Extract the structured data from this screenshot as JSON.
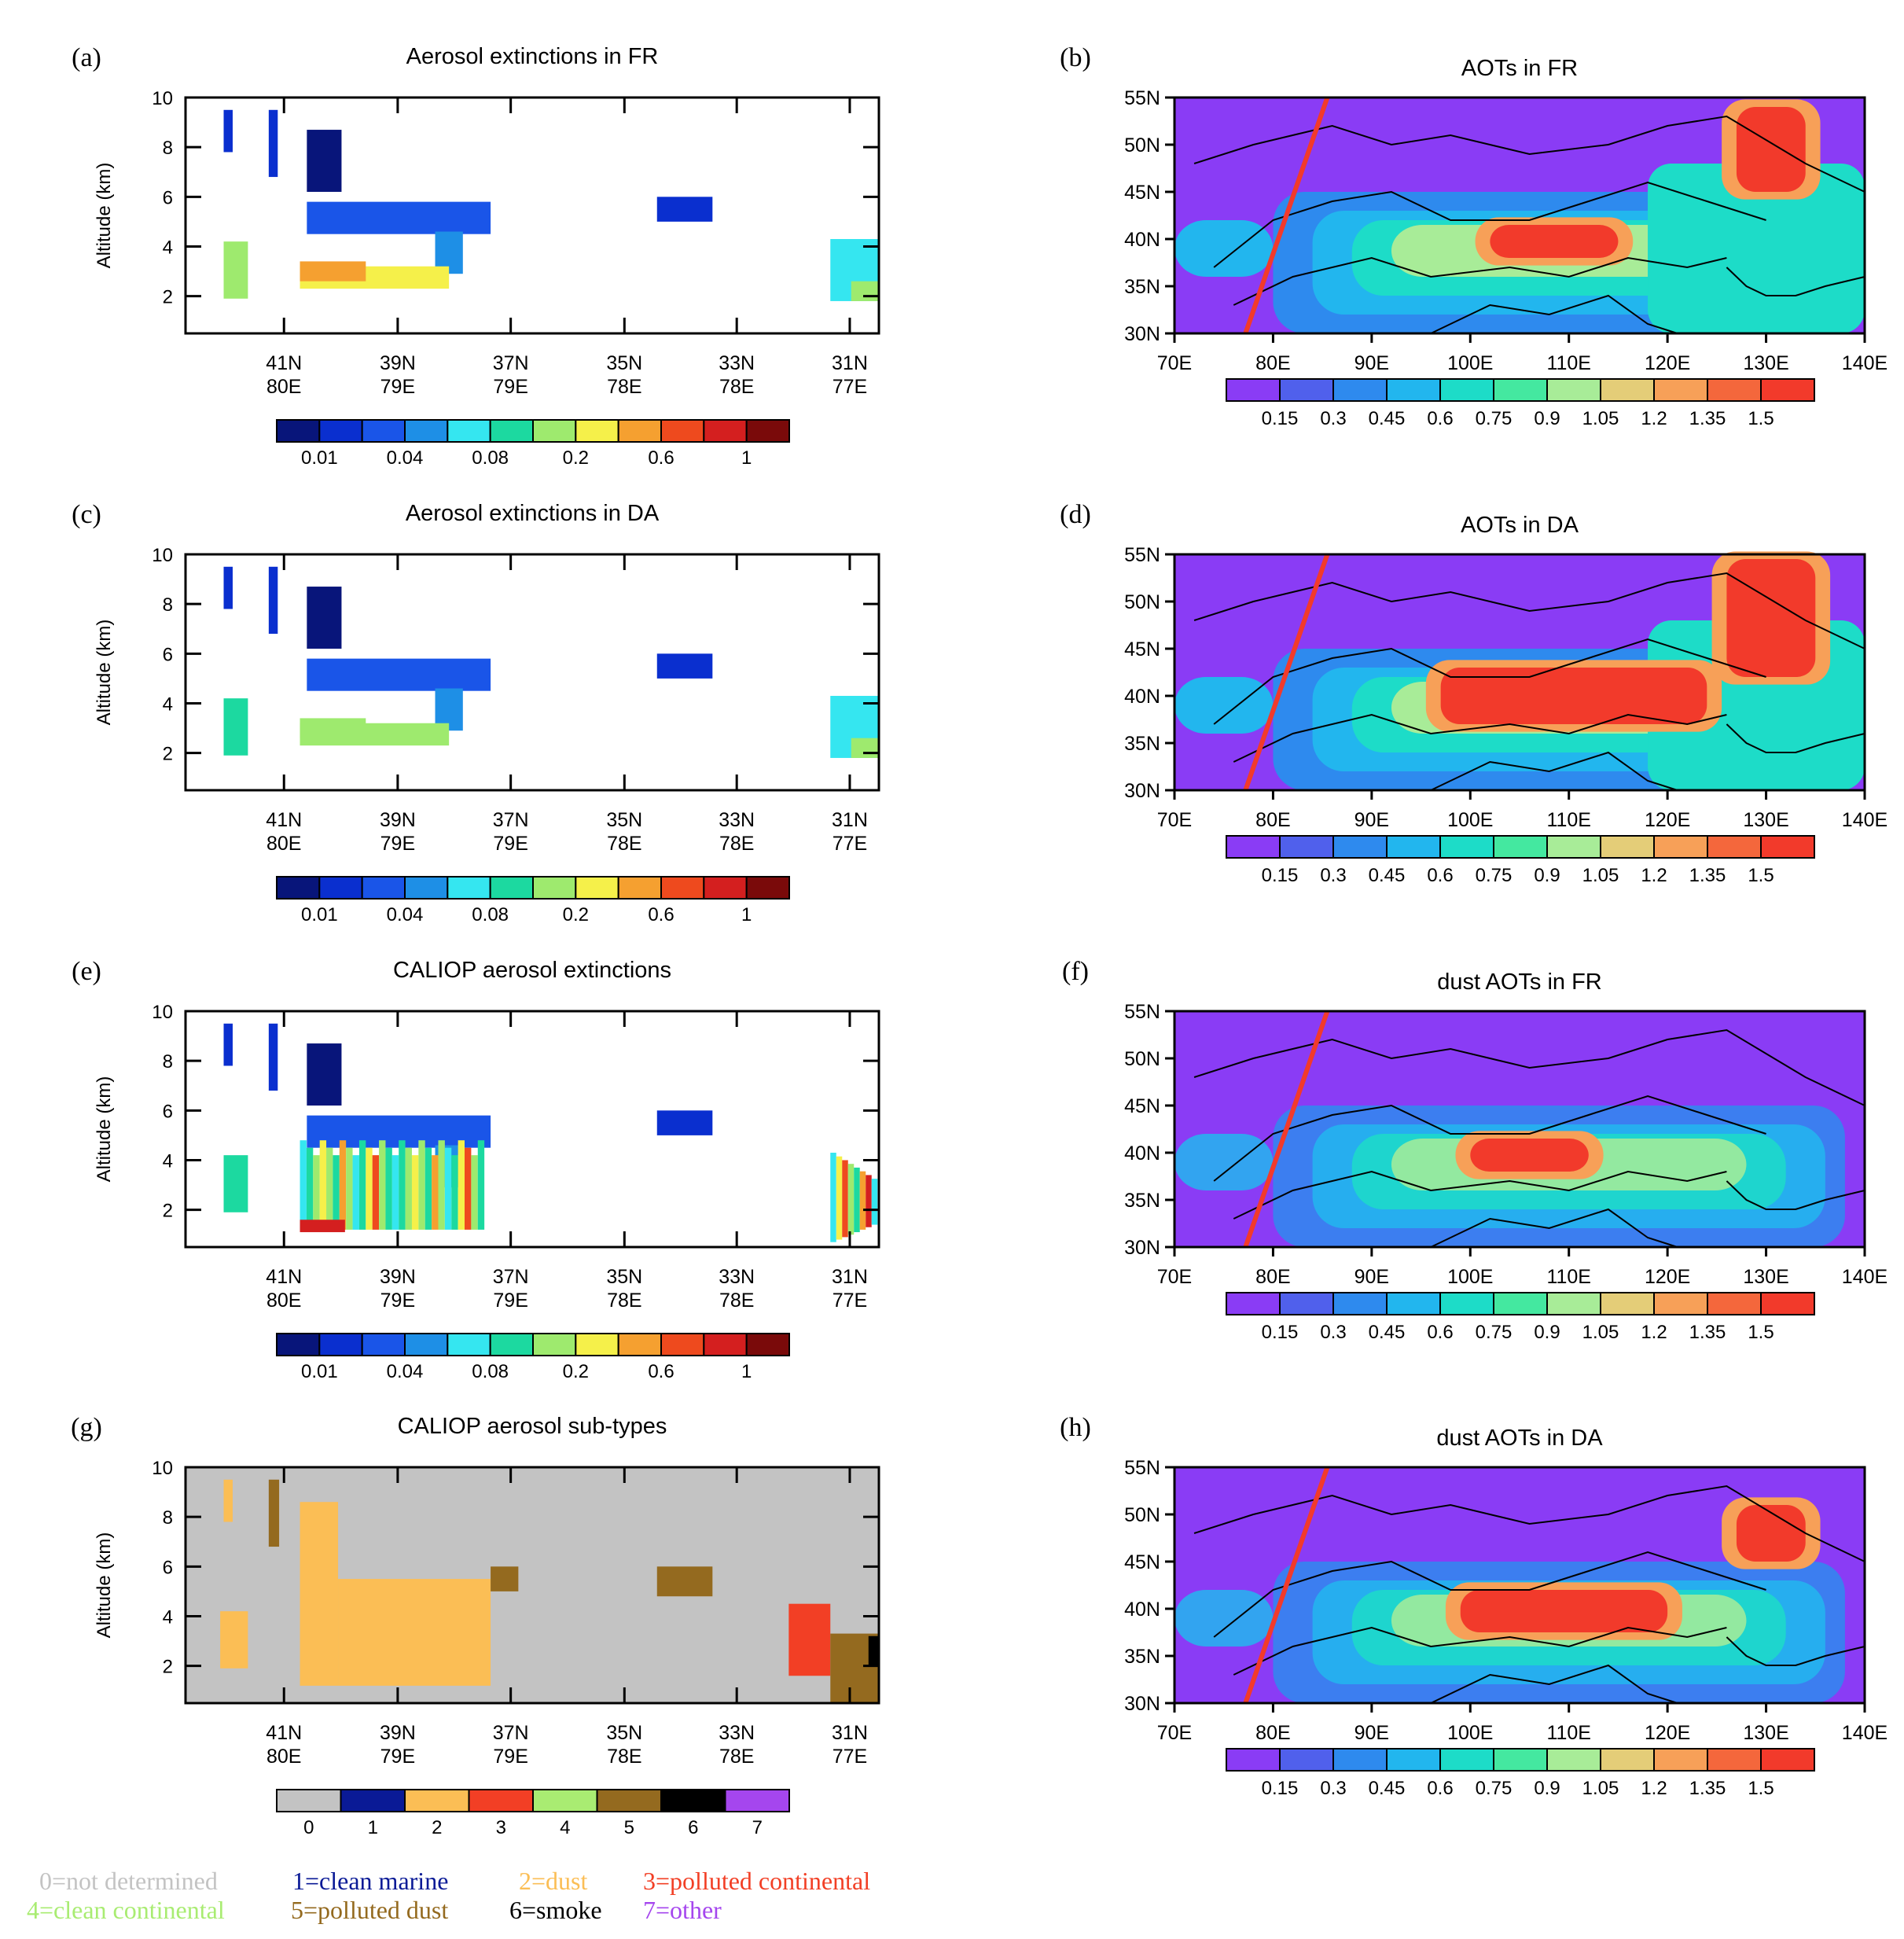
{
  "panels": [
    {
      "id": "a",
      "label": "(a)",
      "title": "Aerosol extinctions in FR",
      "kind": "curtain",
      "ylabel": "Altitude (km)",
      "yticks": [
        "2",
        "4",
        "6",
        "8",
        "10"
      ],
      "xticks": [
        [
          "41N",
          "80E"
        ],
        [
          "39N",
          "79E"
        ],
        [
          "37N",
          "79E"
        ],
        [
          "35N",
          "78E"
        ],
        [
          "33N",
          "78E"
        ],
        [
          "31N",
          "77E"
        ]
      ],
      "colorbar_labels": [
        "0.01",
        "0.04",
        "0.08",
        "0.2",
        "0.6",
        "1"
      ]
    },
    {
      "id": "b",
      "label": "(b)",
      "title": "AOTs in FR",
      "kind": "map",
      "yticks": [
        "55N",
        "50N",
        "45N",
        "40N",
        "35N",
        "30N"
      ],
      "xticks": [
        "70E",
        "80E",
        "90E",
        "100E",
        "110E",
        "120E",
        "130E",
        "140E"
      ],
      "colorbar_labels": [
        "0.15",
        "0.3",
        "0.45",
        "0.6",
        "0.75",
        "0.9",
        "1.05",
        "1.2",
        "1.35",
        "1.5"
      ]
    },
    {
      "id": "c",
      "label": "(c)",
      "title": "Aerosol extinctions in DA",
      "kind": "curtain",
      "ylabel": "Altitude (km)",
      "yticks": [
        "2",
        "4",
        "6",
        "8",
        "10"
      ],
      "xticks": [
        [
          "41N",
          "80E"
        ],
        [
          "39N",
          "79E"
        ],
        [
          "37N",
          "79E"
        ],
        [
          "35N",
          "78E"
        ],
        [
          "33N",
          "78E"
        ],
        [
          "31N",
          "77E"
        ]
      ],
      "colorbar_labels": [
        "0.01",
        "0.04",
        "0.08",
        "0.2",
        "0.6",
        "1"
      ]
    },
    {
      "id": "d",
      "label": "(d)",
      "title": "AOTs in DA",
      "kind": "map",
      "yticks": [
        "55N",
        "50N",
        "45N",
        "40N",
        "35N",
        "30N"
      ],
      "xticks": [
        "70E",
        "80E",
        "90E",
        "100E",
        "110E",
        "120E",
        "130E",
        "140E"
      ],
      "colorbar_labels": [
        "0.15",
        "0.3",
        "0.45",
        "0.6",
        "0.75",
        "0.9",
        "1.05",
        "1.2",
        "1.35",
        "1.5"
      ]
    },
    {
      "id": "e",
      "label": "(e)",
      "title": "CALIOP aerosol extinctions",
      "kind": "curtain",
      "ylabel": "Altitude (km)",
      "yticks": [
        "2",
        "4",
        "6",
        "8",
        "10"
      ],
      "xticks": [
        [
          "41N",
          "80E"
        ],
        [
          "39N",
          "79E"
        ],
        [
          "37N",
          "79E"
        ],
        [
          "35N",
          "78E"
        ],
        [
          "33N",
          "78E"
        ],
        [
          "31N",
          "77E"
        ]
      ],
      "colorbar_labels": [
        "0.01",
        "0.04",
        "0.08",
        "0.2",
        "0.6",
        "1"
      ]
    },
    {
      "id": "f",
      "label": "(f)",
      "title": "dust AOTs in FR",
      "kind": "map",
      "yticks": [
        "55N",
        "50N",
        "45N",
        "40N",
        "35N",
        "30N"
      ],
      "xticks": [
        "70E",
        "80E",
        "90E",
        "100E",
        "110E",
        "120E",
        "130E",
        "140E"
      ],
      "colorbar_labels": [
        "0.15",
        "0.3",
        "0.45",
        "0.6",
        "0.75",
        "0.9",
        "1.05",
        "1.2",
        "1.35",
        "1.5"
      ]
    },
    {
      "id": "g",
      "label": "(g)",
      "title": "CALIOP aerosol sub-types",
      "kind": "subtype",
      "ylabel": "Altitude (km)",
      "yticks": [
        "2",
        "4",
        "6",
        "8",
        "10"
      ],
      "xticks": [
        [
          "41N",
          "80E"
        ],
        [
          "39N",
          "79E"
        ],
        [
          "37N",
          "79E"
        ],
        [
          "35N",
          "78E"
        ],
        [
          "33N",
          "78E"
        ],
        [
          "31N",
          "77E"
        ]
      ],
      "colorbar_labels": [
        "0",
        "1",
        "2",
        "3",
        "4",
        "5",
        "6",
        "7"
      ]
    },
    {
      "id": "h",
      "label": "(h)",
      "title": "dust AOTs in DA",
      "kind": "map",
      "yticks": [
        "55N",
        "50N",
        "45N",
        "40N",
        "35N",
        "30N"
      ],
      "xticks": [
        "70E",
        "80E",
        "90E",
        "100E",
        "110E",
        "120E",
        "130E",
        "140E"
      ],
      "colorbar_labels": [
        "0.15",
        "0.3",
        "0.45",
        "0.6",
        "0.75",
        "0.9",
        "1.05",
        "1.2",
        "1.35",
        "1.5"
      ]
    }
  ],
  "colors": {
    "extinction_scale": [
      "#08157a",
      "#0a2fcf",
      "#1a55e8",
      "#1e8fe6",
      "#35e6f0",
      "#1cd9a0",
      "#9eea6e",
      "#f5f04a",
      "#f5a030",
      "#ee4a1e",
      "#d41f1f",
      "#7a0a0a"
    ],
    "aot_scale": [
      "#8a3cf5",
      "#5060ec",
      "#2e8aee",
      "#22b6ee",
      "#1ddcc8",
      "#44e8a0",
      "#a8ec98",
      "#e4cd78",
      "#f7a058",
      "#f4673c",
      "#f23a2b"
    ],
    "subtype_scale": [
      "#c3c3c3",
      "#0a1a96",
      "#fbbe55",
      "#f23f25",
      "#a9ec72",
      "#946a1f",
      "#000000",
      "#a546ee"
    ],
    "track_line": "#f23a2b"
  },
  "legend": [
    {
      "text": "0=not determined",
      "color": "#c3c3c3"
    },
    {
      "text": "1=clean marine",
      "color": "#0a1a96"
    },
    {
      "text": "2=dust",
      "color": "#fbbe55"
    },
    {
      "text": "3=polluted continental",
      "color": "#f23f25"
    },
    {
      "text": "4=clean continental",
      "color": "#a9ec72"
    },
    {
      "text": "5=polluted dust",
      "color": "#946a1f"
    },
    {
      "text": "6=smoke",
      "color": "#000000"
    },
    {
      "text": "7=other",
      "color": "#a546ee"
    }
  ],
  "chart_data": [
    {
      "panel": "a",
      "type": "heatmap",
      "title": "Aerosol extinctions in FR",
      "xlabel": "",
      "ylabel": "Altitude (km)",
      "ylim": [
        0.5,
        10
      ],
      "x_ticks": [
        "41N 80E",
        "39N 79E",
        "37N 79E",
        "35N 78E",
        "33N 78E",
        "31N 77E"
      ],
      "colorbar_levels": [
        "0.01",
        "0.04",
        "0.08",
        "0.2",
        "0.6",
        "1"
      ],
      "features": [
        {
          "region": "elevated layer near 41N",
          "alt_km": [
            7.8,
            9.5
          ],
          "value_class": "0.01"
        },
        {
          "region": "plume 40.5N-38N",
          "alt_km": [
            4.5,
            8.7
          ],
          "value_class": "0.01-0.04"
        },
        {
          "region": "dust layer 40.5N-38N",
          "alt_km": [
            2.3,
            3.6
          ],
          "value_class": "0.08-0.6"
        },
        {
          "region": "near 33.5N",
          "alt_km": [
            5.0,
            6.0
          ],
          "value_class": "0.01"
        },
        {
          "region": "31.5N-31N",
          "alt_km": [
            1.8,
            4.3
          ],
          "value_class": "0.08-0.2"
        }
      ]
    },
    {
      "panel": "c",
      "type": "heatmap",
      "title": "Aerosol extinctions in DA",
      "xlabel": "",
      "ylabel": "Altitude (km)",
      "ylim": [
        0.5,
        10
      ],
      "x_ticks": [
        "41N 80E",
        "39N 79E",
        "37N 79E",
        "35N 78E",
        "33N 78E",
        "31N 77E"
      ],
      "colorbar_levels": [
        "0.01",
        "0.04",
        "0.08",
        "0.2",
        "0.6",
        "1"
      ],
      "features": [
        {
          "region": "elevated layer near 41N",
          "alt_km": [
            7.8,
            9.5
          ],
          "value_class": "0.01"
        },
        {
          "region": "plume 40.5N-38N",
          "alt_km": [
            4.5,
            8.7
          ],
          "value_class": "0.01-0.04"
        },
        {
          "region": "dust layer 40.5N-38N",
          "alt_km": [
            2.3,
            3.6
          ],
          "value_class": "0.08-0.2"
        },
        {
          "region": "31.5N-31N",
          "alt_km": [
            1.8,
            4.3
          ],
          "value_class": "0.04-0.08"
        }
      ]
    },
    {
      "panel": "e",
      "type": "heatmap",
      "title": "CALIOP aerosol extinctions",
      "xlabel": "",
      "ylabel": "Altitude (km)",
      "ylim": [
        0.5,
        10
      ],
      "x_ticks": [
        "41N 80E",
        "39N 79E",
        "37N 79E",
        "35N 78E",
        "33N 78E",
        "31N 77E"
      ],
      "colorbar_levels": [
        "0.01",
        "0.04",
        "0.08",
        "0.2",
        "0.6",
        "1"
      ],
      "features": [
        {
          "region": "dust layer 40.5N-37.5N",
          "alt_km": [
            1.2,
            5.0
          ],
          "value_class": "0.04-1"
        },
        {
          "region": "31.5N-31N",
          "alt_km": [
            0.7,
            4.3
          ],
          "value_class": "0.04-1"
        }
      ]
    },
    {
      "panel": "g",
      "type": "heatmap",
      "title": "CALIOP aerosol sub-types",
      "xlabel": "",
      "ylabel": "Altitude (km)",
      "ylim": [
        0.5,
        10
      ],
      "categories": [
        "0",
        "1",
        "2",
        "3",
        "4",
        "5",
        "6",
        "7"
      ],
      "features": [
        {
          "region": "40.5N-37.5N",
          "alt_km": [
            1.2,
            8.6
          ],
          "subtype": "2"
        },
        {
          "region": "near 41N",
          "alt_km": [
            7.0,
            9.5
          ],
          "subtype": "5"
        },
        {
          "region": "31.5N",
          "alt_km": [
            2.5,
            4.5
          ],
          "subtype": "3"
        },
        {
          "region": "31.3N-31N",
          "alt_km": [
            0.5,
            3.2
          ],
          "subtype": "5"
        }
      ]
    },
    {
      "panel": "b",
      "type": "heatmap",
      "title": "AOTs in FR",
      "x_range_deg": [
        70,
        140
      ],
      "y_range_deg": [
        30,
        55
      ],
      "colorbar_levels": [
        "0.15",
        "0.3",
        "0.45",
        "0.6",
        "0.75",
        "0.9",
        "1.05",
        "1.2",
        "1.35",
        "1.5"
      ],
      "max_regions": [
        {
          "lon": [
            102,
            115
          ],
          "lat": [
            38,
            41.5
          ],
          "value": ">1.5"
        },
        {
          "lon": [
            127,
            134
          ],
          "lat": [
            45,
            54
          ],
          "value": ">1.5"
        }
      ]
    },
    {
      "panel": "d",
      "type": "heatmap",
      "title": "AOTs in DA",
      "x_range_deg": [
        70,
        140
      ],
      "y_range_deg": [
        30,
        55
      ],
      "colorbar_levels": [
        "0.15",
        "0.3",
        "0.45",
        "0.6",
        "0.75",
        "0.9",
        "1.05",
        "1.2",
        "1.35",
        "1.5"
      ],
      "max_regions": [
        {
          "lon": [
            97,
            124
          ],
          "lat": [
            37,
            43
          ],
          "value": ">1.5"
        },
        {
          "lon": [
            126,
            135
          ],
          "lat": [
            42,
            54.5
          ],
          "value": ">1.5"
        }
      ]
    },
    {
      "panel": "f",
      "type": "heatmap",
      "title": "dust AOTs in FR",
      "x_range_deg": [
        70,
        140
      ],
      "y_range_deg": [
        30,
        55
      ],
      "colorbar_levels": [
        "0.15",
        "0.3",
        "0.45",
        "0.6",
        "0.75",
        "0.9",
        "1.05",
        "1.2",
        "1.35",
        "1.5"
      ],
      "max_regions": [
        {
          "lon": [
            100,
            112
          ],
          "lat": [
            38,
            41.5
          ],
          "value": ">1.5"
        }
      ]
    },
    {
      "panel": "h",
      "type": "heatmap",
      "title": "dust AOTs in DA",
      "x_range_deg": [
        70,
        140
      ],
      "y_range_deg": [
        30,
        55
      ],
      "colorbar_levels": [
        "0.15",
        "0.3",
        "0.45",
        "0.6",
        "0.75",
        "0.9",
        "1.05",
        "1.2",
        "1.35",
        "1.5"
      ],
      "max_regions": [
        {
          "lon": [
            99,
            120
          ],
          "lat": [
            37.5,
            42
          ],
          "value": ">1.5"
        },
        {
          "lon": [
            127,
            134
          ],
          "lat": [
            45,
            51
          ],
          "value": ">1.5"
        }
      ]
    }
  ]
}
